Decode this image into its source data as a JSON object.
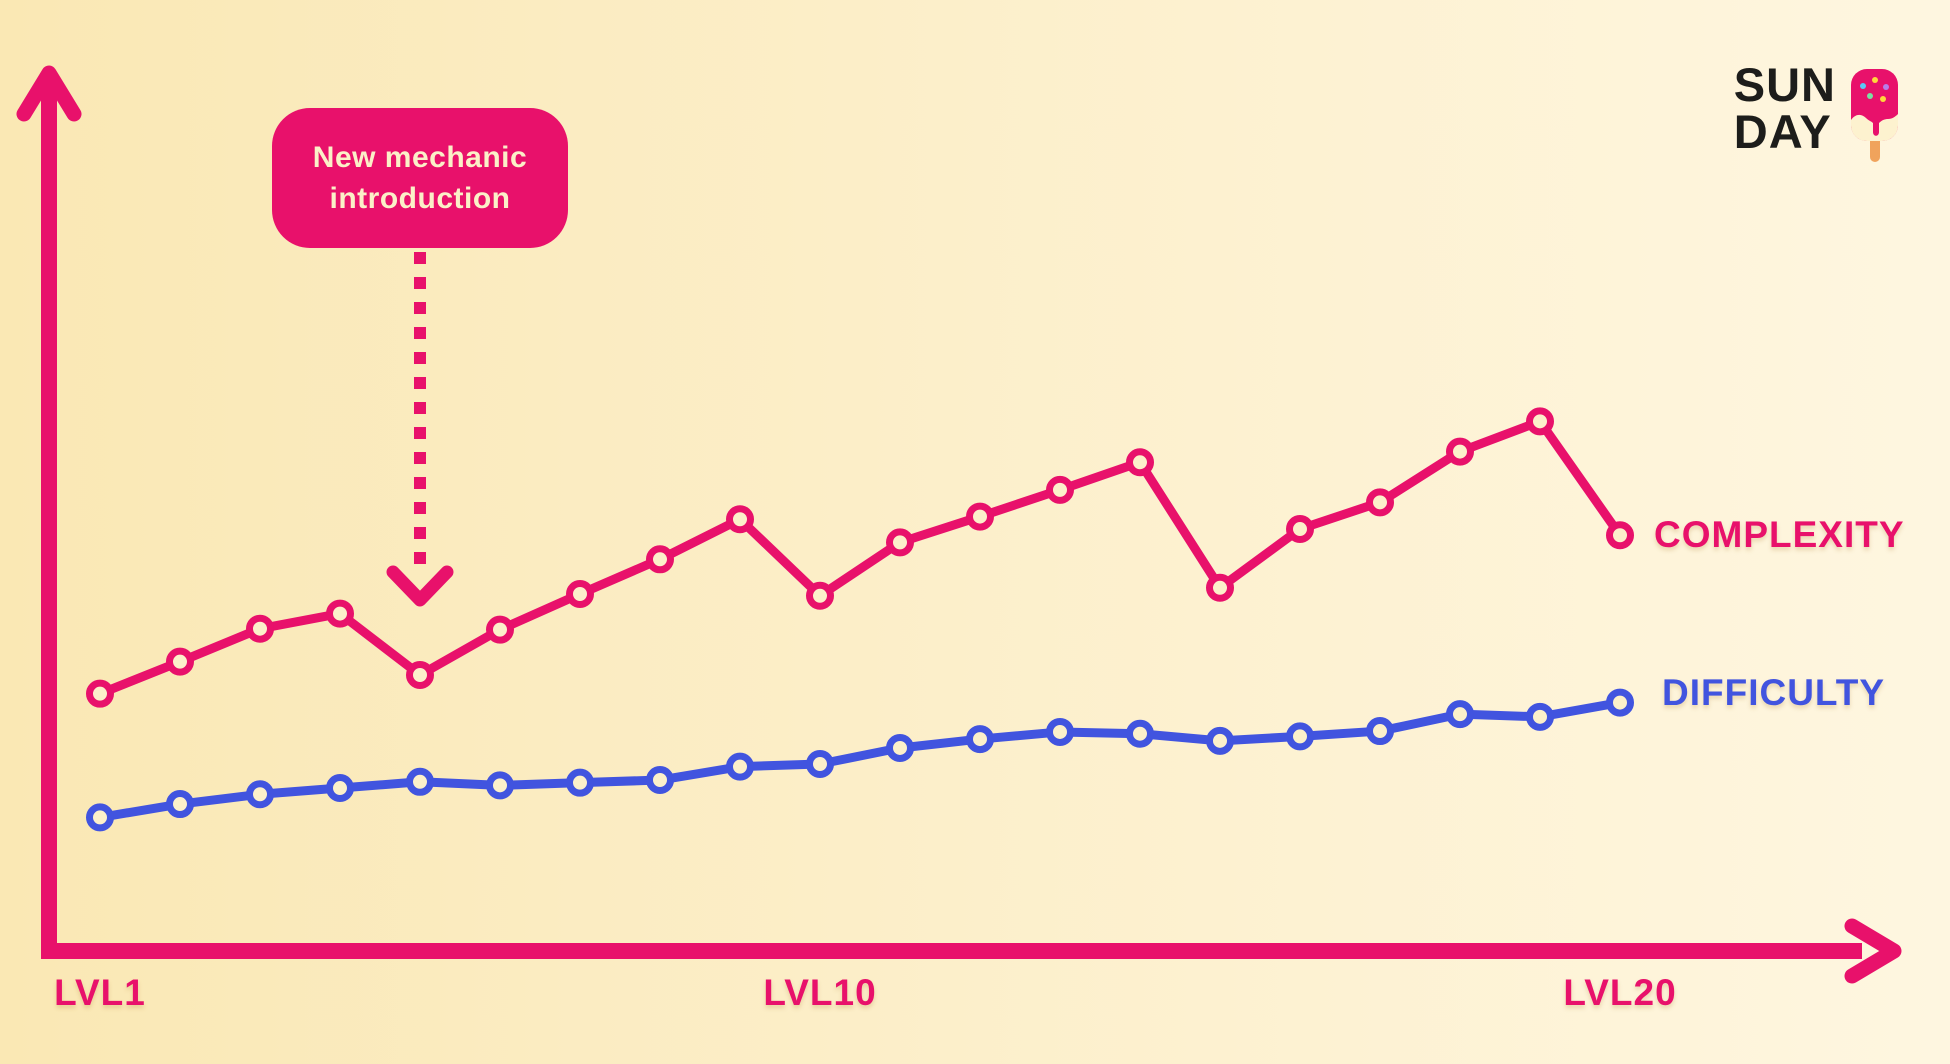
{
  "logo": {
    "line1": "SUN",
    "line2": "DAY",
    "icon": "popsicle-icon",
    "text_color": "#1D1D1B"
  },
  "callout": {
    "line1": "New mechanic",
    "line2": "introduction",
    "bg_color": "#E8116B",
    "text_color": "#FBF0C8"
  },
  "axis_color": "#E8116B",
  "chart_data": {
    "type": "line",
    "x": [
      1,
      2,
      3,
      4,
      5,
      6,
      7,
      8,
      9,
      10,
      11,
      12,
      13,
      14,
      15,
      16,
      17,
      18,
      19,
      20
    ],
    "x_tick_labels": [
      {
        "level": 1,
        "label": "LVL1"
      },
      {
        "level": 10,
        "label": "LVL10"
      },
      {
        "level": 20,
        "label": "LVL20"
      }
    ],
    "ylim": [
      0,
      100
    ],
    "grid": false,
    "legend_position": "right-of-line-end",
    "marker": {
      "shape": "circle-open",
      "hole_fill": "#FCF0CA"
    },
    "series": [
      {
        "name": "COMPLEXITY",
        "color": "#E8116B",
        "values": [
          28.8,
          32.4,
          36.1,
          37.8,
          30.9,
          36.0,
          40.0,
          43.9,
          48.4,
          39.8,
          45.8,
          48.7,
          51.7,
          54.8,
          40.7,
          47.3,
          50.3,
          56.0,
          59.4,
          46.6
        ]
      },
      {
        "name": "DIFFICULTY",
        "color": "#4154DF",
        "values": [
          14.9,
          16.4,
          17.5,
          18.2,
          18.9,
          18.5,
          18.8,
          19.1,
          20.6,
          20.9,
          22.7,
          23.7,
          24.5,
          24.3,
          23.5,
          24.0,
          24.6,
          26.5,
          26.2,
          27.8
        ]
      }
    ],
    "annotation": {
      "label": "New mechanic introduction",
      "points_to_level": 5,
      "arrow_style": "dashed"
    }
  }
}
